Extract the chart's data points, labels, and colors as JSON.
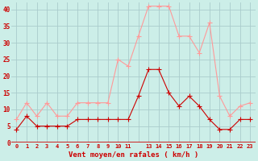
{
  "hours": [
    0,
    1,
    2,
    3,
    4,
    5,
    6,
    7,
    8,
    9,
    10,
    11,
    12,
    13,
    14,
    15,
    16,
    17,
    18,
    19,
    20,
    21,
    22,
    23
  ],
  "wind_avg": [
    4,
    8,
    5,
    5,
    5,
    5,
    7,
    7,
    7,
    7,
    7,
    7,
    14,
    22,
    22,
    15,
    11,
    14,
    11,
    7,
    4,
    4,
    7,
    7
  ],
  "wind_gust": [
    7,
    12,
    8,
    12,
    8,
    8,
    12,
    12,
    12,
    12,
    25,
    23,
    32,
    41,
    41,
    41,
    32,
    32,
    27,
    36,
    14,
    8,
    11,
    12
  ],
  "bg_color": "#cceee8",
  "grid_color": "#aacccc",
  "line_avg_color": "#cc0000",
  "line_gust_color": "#ff9999",
  "xlabel": "Vent moyen/en rafales ( km/h )",
  "xlabel_color": "#cc0000",
  "tick_color": "#cc0000",
  "ylim": [
    0,
    42
  ],
  "yticks": [
    0,
    5,
    10,
    15,
    20,
    25,
    30,
    35,
    40
  ],
  "xtick_labels": [
    "0",
    "1",
    "2",
    "3",
    "4",
    "5",
    "6",
    "7",
    "8",
    "9",
    "10",
    "11",
    "",
    "13",
    "14",
    "15",
    "16",
    "17",
    "18",
    "19",
    "20",
    "21",
    "22",
    "23"
  ],
  "marker_size": 2.0,
  "line_width": 0.8
}
